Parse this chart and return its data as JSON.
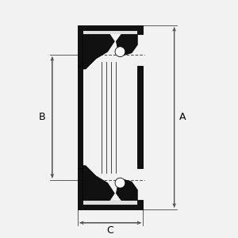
{
  "bg_color": "#f2f2f2",
  "line_color": "#000000",
  "fill_black": "#111111",
  "fill_white": "#ffffff",
  "fill_light": "#e0e0e0",
  "dim_color": "#444444",
  "label_A": "A",
  "label_B": "B",
  "label_C": "C",
  "figsize": [
    3.0,
    3.0
  ],
  "dpi": 100,
  "xlim": [
    0,
    10
  ],
  "ylim": [
    0,
    10
  ]
}
